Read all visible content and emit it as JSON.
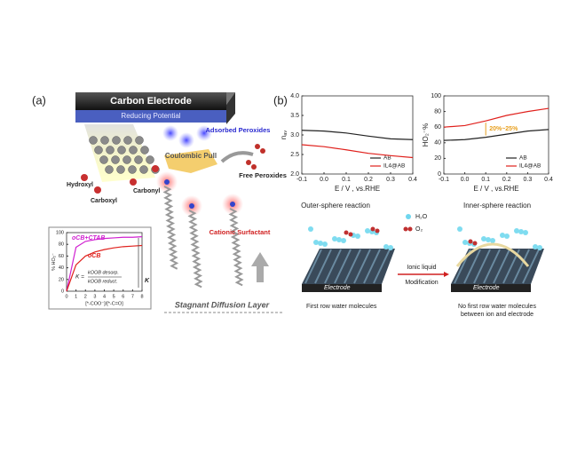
{
  "chart_data": [
    {
      "type": "line",
      "y_label": "n",
      "y_label_sub": "av",
      "x_label": "E / V , vs.RHE",
      "x": [
        -0.1,
        0,
        0.1,
        0.2,
        0.3,
        0.4
      ],
      "series": [
        {
          "name": "AB",
          "color": "#222222",
          "values": [
            3.12,
            3.1,
            3.05,
            2.97,
            2.9,
            2.88
          ]
        },
        {
          "name": "IL4@AB",
          "color": "#e0201c",
          "values": [
            2.75,
            2.7,
            2.62,
            2.53,
            2.47,
            2.42
          ]
        }
      ],
      "xlim": [
        -0.1,
        0.4
      ],
      "xticks": [
        -0.1,
        {
          "value": 0,
          "label": "0.0"
        },
        0.1,
        0.2,
        0.3,
        0.4
      ],
      "ylim": [
        2,
        4
      ],
      "yticks": [
        {
          "value": 2,
          "label": "2.0"
        },
        2.5,
        {
          "value": 3,
          "label": "3.0"
        },
        3.5,
        {
          "value": 4,
          "label": "4.0"
        }
      ],
      "legend": "lower right",
      "legend_style": "line"
    },
    {
      "type": "line",
      "y_label": "HO₂⁻%",
      "x_label": "E / V , vs.RHE",
      "annotation": "20%~25%",
      "x": [
        -0.1,
        0,
        0.1,
        0.2,
        0.3,
        0.4
      ],
      "series": [
        {
          "name": "AB",
          "color": "#222222",
          "values": [
            43,
            44,
            47,
            51,
            55,
            57
          ]
        },
        {
          "name": "IL4@AB",
          "color": "#e0201c",
          "values": [
            60,
            62,
            68,
            75,
            80,
            84
          ]
        }
      ],
      "xlim": [
        -0.1,
        0.4
      ],
      "xticks": [
        -0.1,
        {
          "value": 0,
          "label": "0.0"
        },
        0.1,
        0.2,
        0.3,
        0.4
      ],
      "ylim": [
        0,
        100
      ],
      "yticks": [
        0,
        20,
        40,
        60,
        80,
        100
      ],
      "legend": "lower right",
      "legend_style": "line"
    },
    {
      "type": "line",
      "y_label": "% HO₂⁻",
      "x_label": "[*-COO⁻]/[*-C=O]",
      "x": [
        0,
        1,
        2,
        3,
        4,
        5,
        6,
        7,
        8
      ],
      "series": [
        {
          "name": "oCB+CTAB",
          "color": "#d020d0",
          "values": [
            0,
            75,
            85,
            88,
            90,
            91,
            92,
            92,
            93
          ]
        },
        {
          "name": "oCB",
          "color": "#e0201c",
          "values": [
            0,
            45,
            60,
            67,
            71,
            74,
            76,
            77,
            78
          ]
        }
      ],
      "xlim": [
        0,
        8
      ],
      "xticks": [
        0,
        1,
        2,
        3,
        4,
        5,
        6,
        7,
        8
      ],
      "ylim": [
        0,
        100
      ],
      "yticks": [
        0,
        20,
        40,
        60,
        80,
        100
      ],
      "legend": "upper left",
      "legend_style": "text",
      "formula_lhs": "K =",
      "formula_num": "kOOB desorp.",
      "formula_den": "kOOB reduct.",
      "k_label": "K"
    }
  ],
  "panel_a": {
    "label": "(a)",
    "electrode": "Carbon Electrode",
    "potential": "Reducing Potential",
    "adsorbed": "Adsorbed Peroxides",
    "pull": "Coulombic Pull",
    "free": "Free Peroxides",
    "hydroxyl": "Hydroxyl",
    "carboxyl": "Carboxyl",
    "carbonyl": "Carbonyl",
    "surfactant": "Cationic Surfactant",
    "layer": "Stagnant Diffusion Layer"
  },
  "panel_b": {
    "label": "(b)",
    "outer": "Outer-sphere reaction",
    "inner": "Inner-sphere reaction",
    "h2o": "H₂O",
    "o2": "O₂",
    "il": "Ionic liquid",
    "mod": "Modification",
    "electrode_left": "Electrode",
    "electrode_right": "Electrode",
    "caption_left": "First row water molecules",
    "caption_right_1": "No first row water molecules",
    "caption_right_2": "between ion and electrode"
  }
}
